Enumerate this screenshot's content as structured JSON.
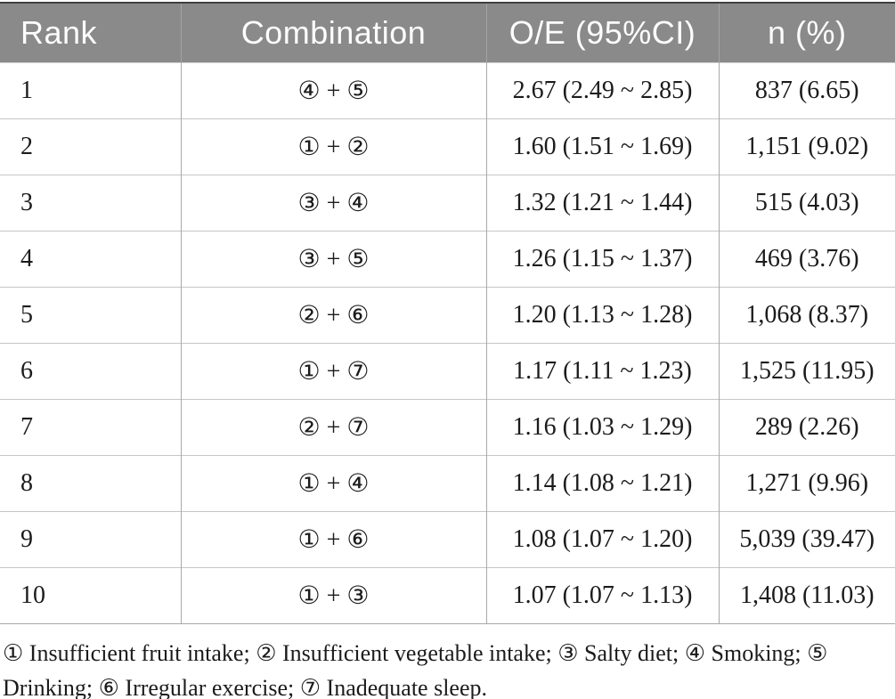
{
  "table": {
    "columns": [
      "Rank",
      "Combination",
      "O/E (95%CI)",
      "n (%)"
    ],
    "rows": [
      [
        "1",
        "④ + ⑤",
        "2.67 (2.49 ~ 2.85)",
        "837 (6.65)"
      ],
      [
        "2",
        "① + ②",
        "1.60 (1.51 ~ 1.69)",
        "1,151 (9.02)"
      ],
      [
        "3",
        "③ + ④",
        "1.32 (1.21 ~ 1.44)",
        "515 (4.03)"
      ],
      [
        "4",
        "③ + ⑤",
        "1.26 (1.15 ~ 1.37)",
        "469 (3.76)"
      ],
      [
        "5",
        "② + ⑥",
        "1.20 (1.13 ~ 1.28)",
        "1,068 (8.37)"
      ],
      [
        "6",
        "① + ⑦",
        "1.17 (1.11 ~ 1.23)",
        "1,525 (11.95)"
      ],
      [
        "7",
        "② + ⑦",
        "1.16 (1.03 ~ 1.29)",
        "289 (2.26)"
      ],
      [
        "8",
        "① + ④",
        "1.14 (1.08 ~ 1.21)",
        "1,271 (9.96)"
      ],
      [
        "9",
        "① + ⑥",
        "1.08 (1.07 ~ 1.20)",
        "5,039 (39.47)"
      ],
      [
        "10",
        "① + ③",
        "1.07 (1.07 ~ 1.13)",
        "1,408 (11.03)"
      ]
    ]
  },
  "footnote": "① Insufficient fruit intake; ② Insufficient vegetable intake; ③ Salty diet; ④ Smoking; ⑤ Drinking; ⑥ Irregular exercise; ⑦ Inadequate sleep.",
  "colors": {
    "page_bg": "#ffffff",
    "header_bg": "#8a8a8a",
    "header_text": "#fdfdfd",
    "body_text": "#1b1b1b",
    "top_border": "#3f3f3f",
    "vertical_border": "#a9a9a9",
    "horizontal_border": "#c6c6c6"
  }
}
